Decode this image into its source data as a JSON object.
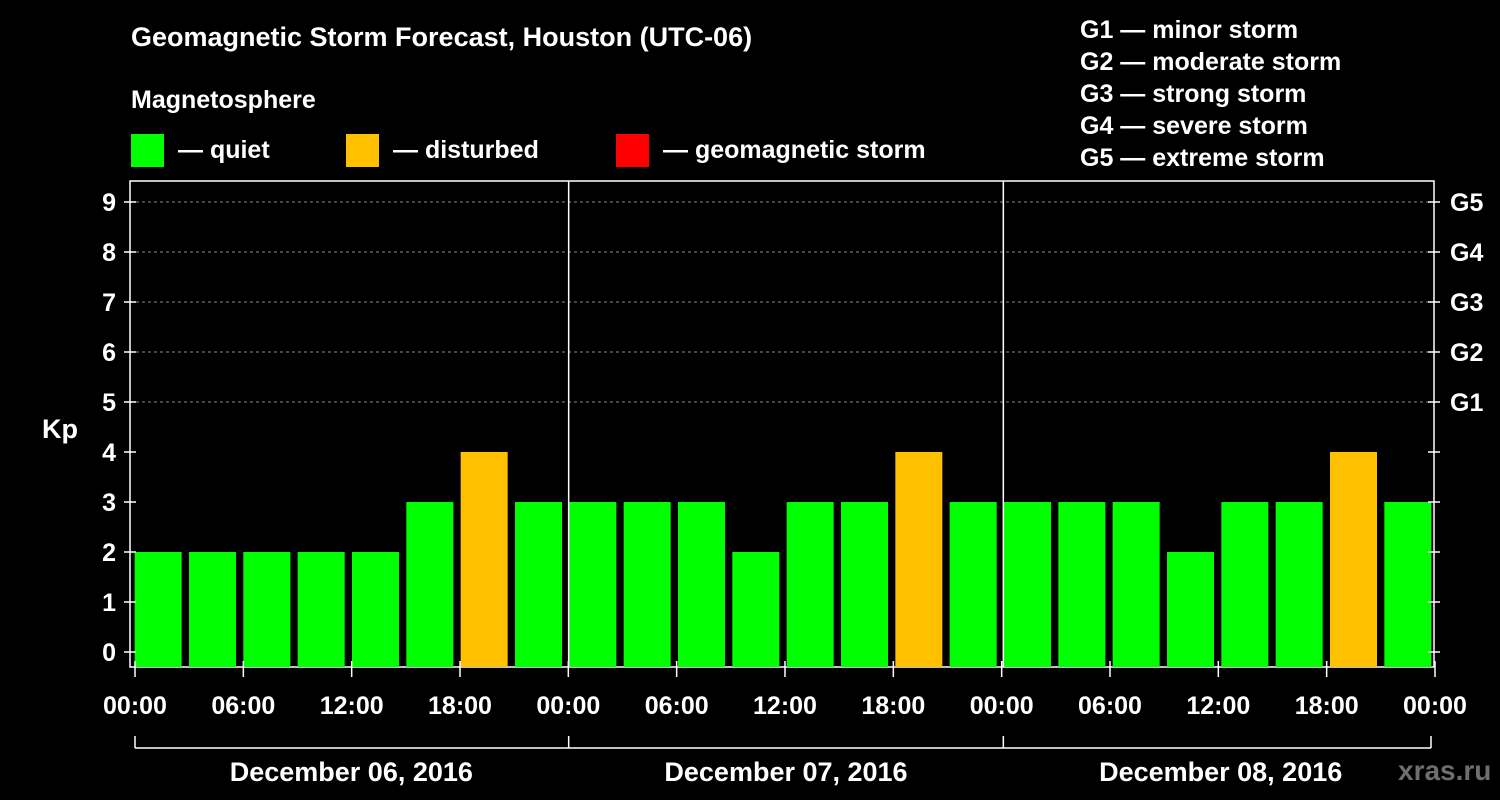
{
  "chart_data": {
    "type": "bar",
    "title": "Geomagnetic Storm Forecast, Houston (UTC-06)",
    "subtitle": "Magnetosphere",
    "ylabel": "Kp",
    "ylim": [
      0,
      9
    ],
    "yticks": [
      "0",
      "1",
      "2",
      "3",
      "4",
      "5",
      "6",
      "7",
      "8",
      "9"
    ],
    "right_ticks": [
      {
        "value": 5,
        "label": "G1"
      },
      {
        "value": 6,
        "label": "G2"
      },
      {
        "value": 7,
        "label": "G3"
      },
      {
        "value": 8,
        "label": "G4"
      },
      {
        "value": 9,
        "label": "G5"
      }
    ],
    "xticks": [
      "00:00",
      "06:00",
      "12:00",
      "18:00",
      "00:00",
      "06:00",
      "12:00",
      "18:00",
      "00:00",
      "06:00",
      "12:00",
      "18:00",
      "00:00"
    ],
    "days": [
      "December 06, 2016",
      "December 07, 2016",
      "December 08, 2016"
    ],
    "values": [
      2,
      2,
      2,
      2,
      2,
      3,
      4,
      3,
      3,
      3,
      3,
      2,
      3,
      3,
      4,
      3,
      3,
      3,
      3,
      2,
      3,
      3,
      4,
      3
    ],
    "legend": [
      {
        "label": "— quiet",
        "color": "#00ff00"
      },
      {
        "label": "— disturbed",
        "color": "#ffc000"
      },
      {
        "label": "— geomagnetic storm",
        "color": "#ff0000"
      }
    ],
    "storm_scale": [
      "G1 — minor storm",
      "G2 — moderate storm",
      "G3 — strong storm",
      "G4 — severe storm",
      "G5 — extreme storm"
    ],
    "grid": true,
    "colors": {
      "quiet": "#00ff00",
      "disturbed": "#ffc000",
      "storm": "#ff0000",
      "grid": "#888888",
      "credit": "#6e6e6e"
    }
  },
  "credit": "xras.ru"
}
